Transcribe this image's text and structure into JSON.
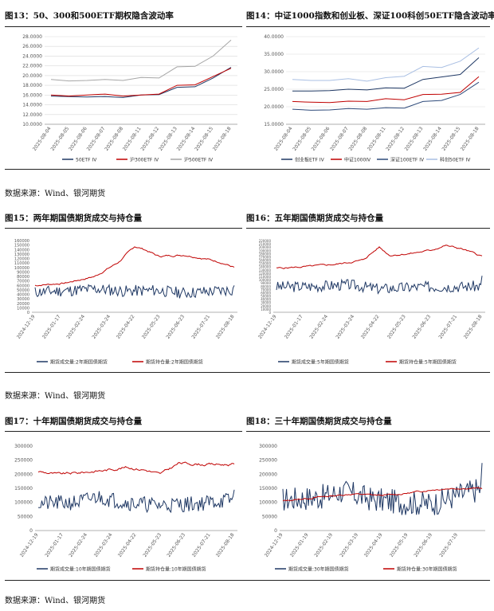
{
  "titles": {
    "fig13": "图13：50、300和500ETF期权隐含波动率",
    "fig14": "图14：中证1000指数和创业板、深证100科创50ETF隐含波动率",
    "fig15": "图15：两年期国债期货成交与持仓量",
    "fig16": "图16：五年期国债期货成交与持仓量",
    "fig17": "图17：十年期国债期货成交与持仓量",
    "fig18": "图18：三十年期国债期货成交与持仓量"
  },
  "sources": {
    "row1": "数据来源：Wind、银河期货",
    "row2": "数据来源：Wind、银河期货",
    "row3": "数据来源：Wind、银河期货"
  },
  "chart_data": [
    {
      "id": "fig13",
      "type": "line",
      "x": [
        "2025-08-04",
        "2025-08-05",
        "2025-08-06",
        "2025-08-07",
        "2025-08-08",
        "2025-08-11",
        "2025-08-12",
        "2025-08-13",
        "2025-08-14",
        "2025-08-15",
        "2025-08-18"
      ],
      "ylim": [
        10,
        28
      ],
      "yticks": [
        "10.0000",
        "12.0000",
        "14.0000",
        "16.0000",
        "18.0000",
        "20.0000",
        "22.0000",
        "24.0000",
        "26.0000",
        "28.0000"
      ],
      "series": [
        {
          "name": "50ETF IV",
          "color": "#1f3864",
          "values": [
            15.8,
            15.7,
            15.6,
            15.7,
            15.5,
            16.0,
            16.1,
            17.6,
            17.7,
            19.5,
            21.7
          ]
        },
        {
          "name": "沪300ETF IV",
          "color": "#c00000",
          "values": [
            16.0,
            15.8,
            16.0,
            16.2,
            15.8,
            16.0,
            16.2,
            18.0,
            18.1,
            19.8,
            21.5
          ]
        },
        {
          "name": "沪500ETF IV",
          "color": "#a6a6a6",
          "values": [
            19.2,
            18.9,
            19.0,
            19.2,
            19.0,
            19.6,
            19.5,
            21.8,
            21.9,
            24.0,
            27.3
          ]
        }
      ],
      "grid": true,
      "legend": "bottom"
    },
    {
      "id": "fig14",
      "type": "line",
      "x": [
        "2025-08-04",
        "2025-08-05",
        "2025-08-06",
        "2025-08-07",
        "2025-08-08",
        "2025-08-11",
        "2025-08-12",
        "2025-08-13",
        "2025-08-14",
        "2025-08-15",
        "2025-08-18"
      ],
      "ylim": [
        15,
        40
      ],
      "yticks": [
        "15.0000",
        "20.0000",
        "25.0000",
        "30.0000",
        "35.0000",
        "40.0000"
      ],
      "series": [
        {
          "name": "创业板ETF IV",
          "color": "#1f3864",
          "values": [
            24.5,
            24.5,
            24.6,
            25.0,
            24.8,
            25.4,
            25.3,
            27.8,
            28.5,
            29.2,
            34.0
          ]
        },
        {
          "name": "中证1000IV",
          "color": "#c00000",
          "values": [
            21.5,
            21.3,
            21.2,
            21.6,
            21.5,
            22.3,
            22.0,
            23.5,
            23.6,
            24.1,
            28.6
          ]
        },
        {
          "name": "深证100ETF IV",
          "color": "#2e4a7a",
          "values": [
            19.3,
            19.0,
            19.1,
            19.5,
            19.3,
            19.7,
            19.6,
            21.5,
            21.8,
            23.5,
            27.0
          ]
        },
        {
          "name": "科创50ETF IV",
          "color": "#a9bfe3",
          "values": [
            27.8,
            27.5,
            27.5,
            28.0,
            27.3,
            28.3,
            28.7,
            31.5,
            31.2,
            33.0,
            36.8
          ]
        }
      ],
      "grid": true,
      "legend": "bottom"
    },
    {
      "id": "fig15",
      "type": "line",
      "x_ticks": [
        "2024-12-19",
        "2025-01-17",
        "2025-02-24",
        "2025-03-24",
        "2025-04-22",
        "2025-05-23",
        "2025-06-23",
        "2025-07-21",
        "2025-08-18"
      ],
      "ylim": [
        0,
        160000
      ],
      "yticks": [
        "0",
        "10000",
        "20000",
        "30000",
        "40000",
        "50000",
        "60000",
        "70000",
        "80000",
        "90000",
        "100000",
        "110000",
        "120000",
        "130000",
        "140000",
        "150000",
        "160000"
      ],
      "series": [
        {
          "name": "期货成交量:2年期国债期货",
          "color": "#1f3864",
          "noise": true,
          "anchors": [
            [
              0,
              45000
            ],
            [
              0.15,
              48000
            ],
            [
              0.3,
              52000
            ],
            [
              0.45,
              47000
            ],
            [
              0.6,
              49000
            ],
            [
              0.75,
              43000
            ],
            [
              1,
              50000
            ]
          ],
          "amp": 13000,
          "seed": 11,
          "end": 60000
        },
        {
          "name": "期货持仓量:2年期国债期货",
          "color": "#c00000",
          "anchors": [
            [
              0,
              60000
            ],
            [
              0.15,
              65000
            ],
            [
              0.3,
              80000
            ],
            [
              0.42,
              112000
            ],
            [
              0.5,
              147000
            ],
            [
              0.55,
              140000
            ],
            [
              0.62,
              125000
            ],
            [
              0.75,
              128000
            ],
            [
              0.85,
              120000
            ],
            [
              0.93,
              112000
            ],
            [
              1,
              100000
            ]
          ],
          "amp": 3000,
          "seed": 7
        }
      ],
      "grid": false,
      "legend": "bottom"
    },
    {
      "id": "fig16",
      "type": "line",
      "x_ticks": [
        "2024-12-19",
        "2025-01-17",
        "2025-02-24",
        "2025-03-24",
        "2025-04-22",
        "2025-05-23",
        "2025-06-23",
        "2025-07-21",
        "2025-08-18"
      ],
      "ylim": [
        0,
        220000
      ],
      "yticks": [
        "0",
        "10000",
        "20000",
        "30000",
        "40000",
        "50000",
        "60000",
        "70000",
        "80000",
        "90000",
        "100000",
        "110000",
        "120000",
        "130000",
        "140000",
        "150000",
        "160000",
        "170000",
        "180000",
        "190000",
        "200000",
        "210000",
        "220000"
      ],
      "series": [
        {
          "name": "期货成交量:5年期国债期货",
          "color": "#1f3864",
          "noise": true,
          "anchors": [
            [
              0,
              78000
            ],
            [
              0.2,
              80000
            ],
            [
              0.35,
              85000
            ],
            [
              0.5,
              72000
            ],
            [
              0.7,
              78000
            ],
            [
              1,
              80000
            ]
          ],
          "amp": 17000,
          "seed": 3,
          "end": 112000
        },
        {
          "name": "期货持仓量:5年期国债期货",
          "color": "#c00000",
          "anchors": [
            [
              0,
              135000
            ],
            [
              0.15,
              140000
            ],
            [
              0.3,
              148000
            ],
            [
              0.42,
              160000
            ],
            [
              0.5,
              200000
            ],
            [
              0.55,
              175000
            ],
            [
              0.65,
              180000
            ],
            [
              0.75,
              190000
            ],
            [
              0.82,
              205000
            ],
            [
              0.9,
              195000
            ],
            [
              1,
              172000
            ]
          ],
          "amp": 4000,
          "seed": 5
        }
      ],
      "grid": false,
      "legend": "bottom"
    },
    {
      "id": "fig17",
      "type": "line",
      "x_ticks": [
        "2024-12-19",
        "2025-01-17",
        "2025-02-24",
        "2025-03-24",
        "2025-04-22",
        "2025-05-23",
        "2025-06-23",
        "2025-07-21",
        "2025-08-18"
      ],
      "ylim": [
        0,
        300000
      ],
      "yticks": [
        "0",
        "50000",
        "100000",
        "150000",
        "200000",
        "250000",
        "300000"
      ],
      "series": [
        {
          "name": "期货成交量:10年期国债期货",
          "color": "#1f3864",
          "noise": true,
          "anchors": [
            [
              0,
              95000
            ],
            [
              0.2,
              100000
            ],
            [
              0.3,
              120000
            ],
            [
              0.45,
              100000
            ],
            [
              0.6,
              90000
            ],
            [
              0.8,
              95000
            ],
            [
              1,
              110000
            ]
          ],
          "amp": 28000,
          "seed": 21,
          "end": 145000
        },
        {
          "name": "期货持仓量:10年期国债期货",
          "color": "#c00000",
          "anchors": [
            [
              0,
              210000
            ],
            [
              0.1,
              200000
            ],
            [
              0.2,
              205000
            ],
            [
              0.35,
              215000
            ],
            [
              0.45,
              225000
            ],
            [
              0.55,
              215000
            ],
            [
              0.62,
              200000
            ],
            [
              0.72,
              240000
            ],
            [
              0.85,
              235000
            ],
            [
              1,
              235000
            ]
          ],
          "amp": 7000,
          "seed": 9
        }
      ],
      "grid": false,
      "legend": "bottom"
    },
    {
      "id": "fig18",
      "type": "line",
      "x_ticks": [
        "2024-12-19",
        "2025-01-19",
        "2025-02-19",
        "2025-03-19",
        "2025-04-19",
        "2025-05-19",
        "2025-06-19",
        "2025-07-19"
      ],
      "ylim": [
        0,
        300000
      ],
      "yticks": [
        "0",
        "50000",
        "100000",
        "150000",
        "200000",
        "250000",
        "300000"
      ],
      "series": [
        {
          "name": "期货成交量:30年期国债期货",
          "color": "#1f3864",
          "noise": true,
          "anchors": [
            [
              0,
              110000
            ],
            [
              0.2,
              120000
            ],
            [
              0.3,
              140000
            ],
            [
              0.45,
              110000
            ],
            [
              0.6,
              100000
            ],
            [
              0.75,
              95000
            ],
            [
              0.9,
              130000
            ],
            [
              1,
              150000
            ]
          ],
          "amp": 45000,
          "seed": 17,
          "end": 240000
        },
        {
          "name": "期货持仓量:30年期国债期货",
          "color": "#c00000",
          "anchors": [
            [
              0,
              105000
            ],
            [
              0.2,
              120000
            ],
            [
              0.35,
              130000
            ],
            [
              0.5,
              125000
            ],
            [
              0.6,
              130000
            ],
            [
              0.75,
              145000
            ],
            [
              0.85,
              150000
            ],
            [
              1,
              150000
            ]
          ],
          "amp": 4000,
          "seed": 13
        }
      ],
      "grid": false,
      "legend": "bottom"
    }
  ]
}
